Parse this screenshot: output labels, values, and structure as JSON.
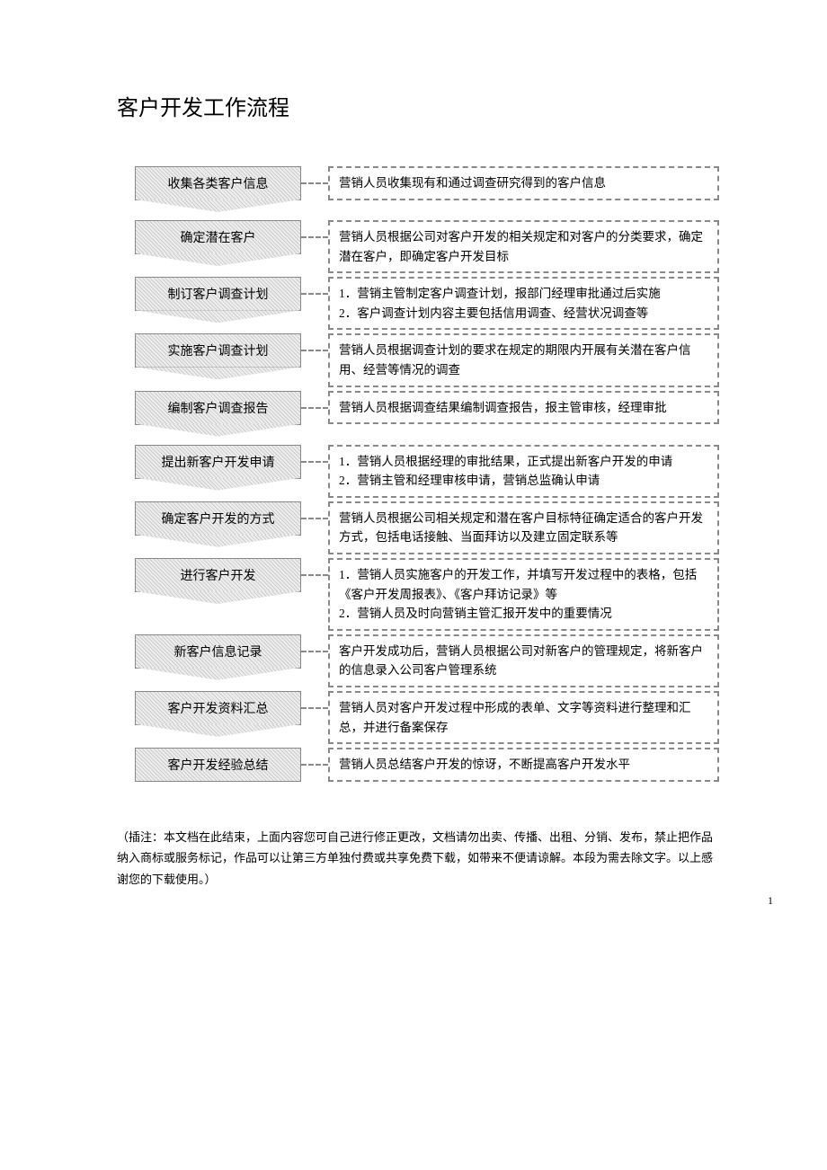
{
  "title": "客户开发工作流程",
  "steps": [
    {
      "label": "收集各类客户信息",
      "desc": "营销人员收集现有和通过调查研究得到的客户信息"
    },
    {
      "label": "确定潜在客户",
      "desc": "营销人员根据公司对客户开发的相关规定和对客户的分类要求，确定潜在客户，即确定客户开发目标"
    },
    {
      "label": "制订客户调查计划",
      "desc": "1．营销主管制定客户调查计划，报部门经理审批通过后实施\n2．客户调查计划内容主要包括信用调查、经营状况调查等"
    },
    {
      "label": "实施客户调查计划",
      "desc": "营销人员根据调查计划的要求在规定的期限内开展有关潜在客户信用、经营等情况的调查"
    },
    {
      "label": "编制客户调查报告",
      "desc": "营销人员根据调查结果编制调查报告，报主管审核，经理审批"
    },
    {
      "label": "提出新客户开发申请",
      "desc": "1．营销人员根据经理的审批结果，正式提出新客户开发的申请\n2．营销主管和经理审核申请，营销总监确认申请"
    },
    {
      "label": "确定客户开发的方式",
      "desc": "营销人员根据公司相关规定和潜在客户目标特征确定适合的客户开发方式，包括电话接触、当面拜访以及建立固定联系等"
    },
    {
      "label": "进行客户开发",
      "desc": "1．营销人员实施客户的开发工作，并填写开发过程中的表格，包括《客户开发周报表》、《客户拜访记录》等\n2．营销人员及时向营销主管汇报开发中的重要情况"
    },
    {
      "label": "新客户信息记录",
      "desc": "客户开发成功后，营销人员根据公司对新客户的管理规定，将新客户的信息录入公司客户管理系统"
    },
    {
      "label": "客户开发资料汇总",
      "desc": "营销人员对客户开发过程中形成的表单、文字等资料进行整理和汇总，并进行备案保存"
    },
    {
      "label": "客户开发经验总结",
      "desc": "营销人员总结客户开发的惊讶，不断提高客户开发水平"
    }
  ],
  "footnote": "（插注：本文档在此结束，上面内容您可自己进行修正更改，文档请勿出卖、传播、出租、分销、发布，禁止把作品纳入商标或服务标记，作品可以让第三方单独付费或共享免费下载，如带来不便请谅解。本段为需去除文字。以上感谢您的下载使用。）",
  "pageNumber": "1",
  "style": {
    "pageWidth": 920,
    "pageHeight": 1302,
    "background": "#ffffff",
    "textColor": "#000000",
    "stepBoxWidth": 185,
    "stepFontSize": 14,
    "descFontSize": 13.5,
    "titleFontSize": 24,
    "footnoteFontSize": 13,
    "borderDashColor": "#888888",
    "hatchLight": "#eeeeee",
    "hatchDark": "#cccccc"
  }
}
